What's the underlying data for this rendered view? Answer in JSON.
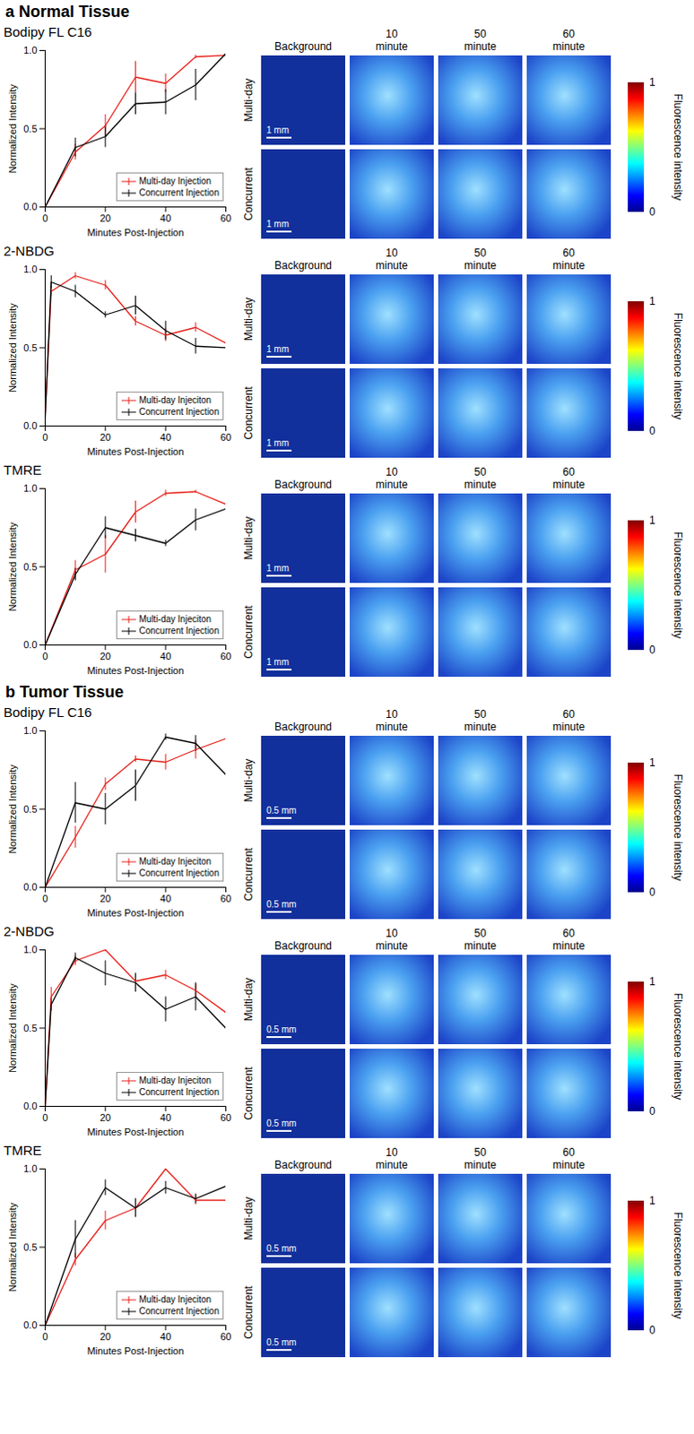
{
  "chart_data": [
    {
      "type": "line",
      "title": "Bodipy FL C16",
      "x_label": "Minutes Post-Injection",
      "y_label": "Normalized Intensity",
      "x": [
        0,
        10,
        20,
        30,
        40,
        50,
        60
      ],
      "xlim": [
        0,
        60
      ],
      "xticks": [
        0,
        20,
        40,
        60
      ],
      "ylim": [
        0,
        1
      ],
      "yticks": [
        0,
        0.5,
        1
      ],
      "legend": "lower right",
      "series": [
        {
          "name": "Multi-day Injection",
          "color": "#e8201a",
          "values": [
            0,
            0.35,
            0.52,
            0.83,
            0.79,
            0.96,
            0.97
          ],
          "error": [
            0,
            0.05,
            0.07,
            0.1,
            0.06,
            0.01,
            0.01
          ]
        },
        {
          "name": "Concurrent Injection",
          "color": "#000000",
          "values": [
            0,
            0.38,
            0.45,
            0.66,
            0.67,
            0.78,
            0.98
          ],
          "error": [
            0,
            0.06,
            0.07,
            0.07,
            0.08,
            0.1,
            0.02
          ]
        }
      ]
    },
    {
      "type": "line",
      "title": "2-NBDG",
      "x_label": "Minutes Post-Injection",
      "y_label": "Normalized Intensity",
      "x": [
        0,
        2,
        10,
        20,
        30,
        40,
        50,
        60
      ],
      "xlim": [
        0,
        60
      ],
      "xticks": [
        0,
        20,
        40,
        60
      ],
      "ylim": [
        0,
        1
      ],
      "yticks": [
        0,
        0.5,
        1
      ],
      "legend": "lower right",
      "series": [
        {
          "name": "Multi-day Injeciton",
          "color": "#e8201a",
          "values": [
            0.08,
            0.86,
            0.96,
            0.9,
            0.67,
            0.58,
            0.63,
            0.53
          ],
          "error": [
            0.03,
            0.03,
            0.02,
            0.03,
            0.03,
            0.04,
            0.03,
            0.02
          ]
        },
        {
          "name": "Concurrent Injection",
          "color": "#000000",
          "values": [
            0.05,
            0.92,
            0.86,
            0.71,
            0.77,
            0.61,
            0.51,
            0.5
          ],
          "error": [
            0.03,
            0.04,
            0.04,
            0.02,
            0.06,
            0.06,
            0.05,
            0.04
          ]
        }
      ]
    },
    {
      "type": "line",
      "title": "TMRE",
      "x_label": "Minutes Post-Injection",
      "y_label": "Normalized Intensity",
      "x": [
        0,
        10,
        20,
        30,
        40,
        50,
        60
      ],
      "xlim": [
        0,
        60
      ],
      "xticks": [
        0,
        20,
        40,
        60
      ],
      "ylim": [
        0,
        1
      ],
      "yticks": [
        0,
        0.5,
        1
      ],
      "legend": "lower right",
      "series": [
        {
          "name": "Multi-day Injeciton",
          "color": "#e8201a",
          "values": [
            0,
            0.48,
            0.58,
            0.85,
            0.97,
            0.98,
            0.9
          ],
          "error": [
            0,
            0.06,
            0.12,
            0.07,
            0.02,
            0.01,
            0.03
          ]
        },
        {
          "name": "Concurrent Injection",
          "color": "#000000",
          "values": [
            0,
            0.45,
            0.75,
            0.7,
            0.65,
            0.8,
            0.87
          ],
          "error": [
            0,
            0.04,
            0.07,
            0.04,
            0.02,
            0.07,
            0.06
          ]
        }
      ]
    },
    {
      "type": "line",
      "title": "Bodipy FL C16",
      "x_label": "Minutes Post-Injection",
      "y_label": "Normalized Intensity",
      "x": [
        0,
        10,
        20,
        30,
        40,
        50,
        60
      ],
      "xlim": [
        0,
        60
      ],
      "xticks": [
        0,
        20,
        40,
        60
      ],
      "ylim": [
        0,
        1
      ],
      "yticks": [
        0,
        0.5,
        1
      ],
      "legend": "lower right",
      "series": [
        {
          "name": "Multi-day Injeciton",
          "color": "#e8201a",
          "values": [
            0,
            0.32,
            0.66,
            0.82,
            0.8,
            0.88,
            0.95
          ],
          "error": [
            0,
            0.07,
            0.04,
            0.02,
            0.05,
            0.06,
            0.04
          ]
        },
        {
          "name": "Concurrent Injection",
          "color": "#000000",
          "values": [
            0,
            0.54,
            0.5,
            0.65,
            0.96,
            0.92,
            0.72
          ],
          "error": [
            0,
            0.13,
            0.1,
            0.1,
            0.02,
            0.05,
            0.1
          ]
        }
      ]
    },
    {
      "type": "line",
      "title": "2-NBDG",
      "x_label": "Minutes Post-Injection",
      "y_label": "Normalized Intensity",
      "x": [
        0,
        2,
        10,
        20,
        30,
        40,
        50,
        60
      ],
      "xlim": [
        0,
        60
      ],
      "xticks": [
        0,
        20,
        40,
        60
      ],
      "ylim": [
        0,
        1
      ],
      "yticks": [
        0,
        0.5,
        1
      ],
      "legend": "lower right",
      "series": [
        {
          "name": "Multi-day Injeciton",
          "color": "#e8201a",
          "values": [
            0,
            0.7,
            0.93,
            1.0,
            0.8,
            0.84,
            0.74,
            0.6
          ],
          "error": [
            0,
            0.06,
            0.03,
            0.01,
            0.04,
            0.03,
            0.04,
            0.04
          ]
        },
        {
          "name": "Concurrent Injection",
          "color": "#000000",
          "values": [
            0,
            0.65,
            0.95,
            0.85,
            0.79,
            0.62,
            0.7,
            0.5
          ],
          "error": [
            0,
            0.04,
            0.03,
            0.08,
            0.06,
            0.08,
            0.09,
            0.1
          ]
        }
      ]
    },
    {
      "type": "line",
      "title": "TMRE",
      "x_label": "Minutes Post-Injection",
      "y_label": "Normalized Intensity",
      "x": [
        0,
        10,
        20,
        30,
        40,
        50,
        60
      ],
      "xlim": [
        0,
        60
      ],
      "xticks": [
        0,
        20,
        40,
        60
      ],
      "ylim": [
        0,
        1
      ],
      "yticks": [
        0,
        0.5,
        1
      ],
      "legend": "lower right",
      "series": [
        {
          "name": "Multi-day Injeciton",
          "color": "#e8201a",
          "values": [
            0,
            0.42,
            0.67,
            0.75,
            1.0,
            0.8,
            0.8
          ],
          "error": [
            0,
            0.04,
            0.06,
            0.05,
            0.01,
            0.03,
            0.03
          ]
        },
        {
          "name": "Concurrent Injection",
          "color": "#000000",
          "values": [
            0,
            0.55,
            0.88,
            0.75,
            0.88,
            0.81,
            0.89
          ],
          "error": [
            0,
            0.12,
            0.05,
            0.06,
            0.04,
            0.03,
            0.04
          ]
        }
      ]
    }
  ],
  "figure": {
    "sections": [
      {
        "letter": "a",
        "title": "Normal Tissue",
        "scale_bar": "1 mm"
      },
      {
        "letter": "b",
        "title": "Tumor Tissue",
        "scale_bar": "0.5 mm"
      }
    ],
    "image_columns": [
      "Background",
      "10 minute",
      "50 minute",
      "60 minute"
    ],
    "image_rows": [
      "Multi-day",
      "Concurrent"
    ],
    "colorbar": {
      "label": "Fluorescence intensity",
      "range": [
        0,
        1
      ],
      "ticks": [
        0,
        1
      ]
    }
  }
}
